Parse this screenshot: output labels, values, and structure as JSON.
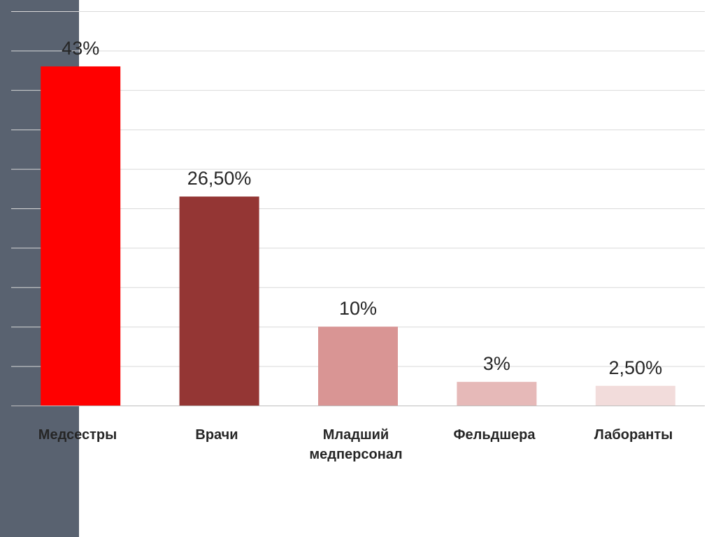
{
  "chart_data": {
    "type": "bar",
    "categories": [
      "Медсестры",
      "Врачи",
      "Младший медперсонал",
      "Фельдшера",
      "Лаборанты"
    ],
    "category_lines": [
      [
        "Медсестры"
      ],
      [
        "Врачи"
      ],
      [
        "Младший",
        "медперсонал"
      ],
      [
        "Фельдшера"
      ],
      [
        "Лаборанты"
      ]
    ],
    "values": [
      43,
      26.5,
      10,
      3,
      2.5
    ],
    "data_labels": [
      "43%",
      "26,50%",
      "10%",
      "3%",
      "2,50%"
    ],
    "colors": [
      "#ff0000",
      "#943634",
      "#d99594",
      "#e6b9b8",
      "#f2dcdb"
    ],
    "ylim": [
      0,
      50
    ],
    "grid": true,
    "gridline_color": "#d9d9d9",
    "side_band_color": "#596270",
    "title": "",
    "xlabel": "",
    "ylabel": ""
  }
}
